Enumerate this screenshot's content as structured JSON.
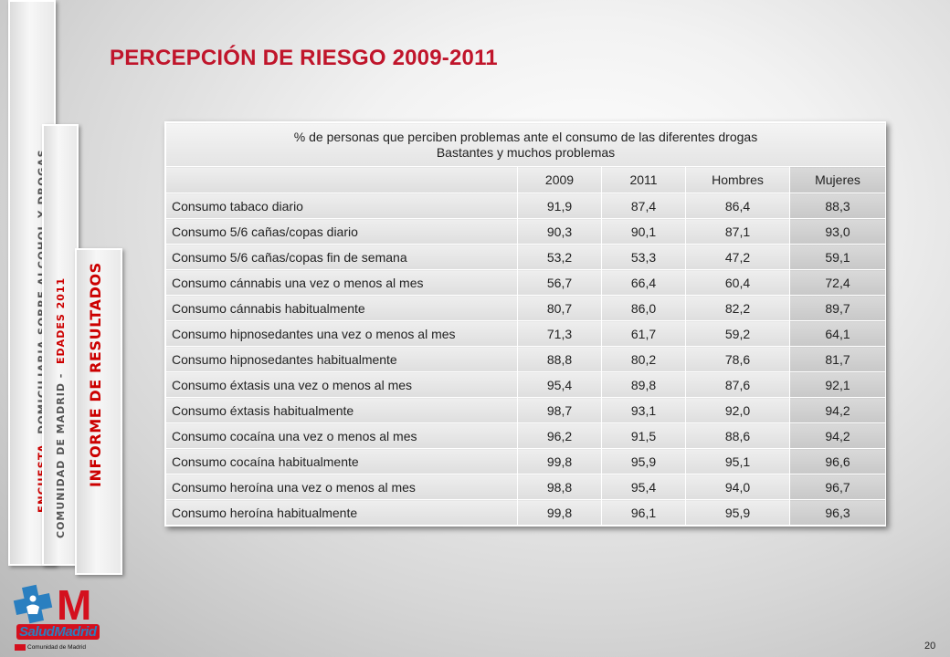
{
  "sidebar": {
    "tab1": {
      "part_a": "ENCUESTA",
      "part_b": "DOMICILIARIA  SOBRE  ALCOHOL  Y  DROGAS"
    },
    "tab2": {
      "part_a": "COMUNIDAD  DE  MADRID  -",
      "part_b": "EDADES  2011"
    },
    "tab3": {
      "text": "INFORME  DE  RESULTADOS"
    }
  },
  "title": "PERCEPCIÓN DE RIESGO 2009-2011",
  "table": {
    "caption_line1": "%  de personas que perciben problemas ante el consumo de las diferentes drogas",
    "caption_line2": "Bastantes y muchos problemas",
    "headers": [
      "",
      "2009",
      "2011",
      "Hombres",
      "Mujeres"
    ],
    "rows": [
      [
        "Consumo tabaco diario",
        "91,9",
        "87,4",
        "86,4",
        "88,3"
      ],
      [
        "Consumo 5/6 cañas/copas diario",
        "90,3",
        "90,1",
        "87,1",
        "93,0"
      ],
      [
        "Consumo 5/6 cañas/copas fin de semana",
        "53,2",
        "53,3",
        "47,2",
        "59,1"
      ],
      [
        "Consumo cánnabis una vez o menos al mes",
        "56,7",
        "66,4",
        "60,4",
        "72,4"
      ],
      [
        "Consumo cánnabis habitualmente",
        "80,7",
        "86,0",
        "82,2",
        "89,7"
      ],
      [
        "Consumo hipnosedantes una vez o menos al mes",
        "71,3",
        "61,7",
        "59,2",
        "64,1"
      ],
      [
        "Consumo hipnosedantes habitualmente",
        "88,8",
        "80,2",
        "78,6",
        "81,7"
      ],
      [
        "Consumo éxtasis una vez o menos al mes",
        "95,4",
        "89,8",
        "87,6",
        "92,1"
      ],
      [
        "Consumo éxtasis habitualmente",
        "98,7",
        "93,1",
        "92,0",
        "94,2"
      ],
      [
        "Consumo cocaína una vez o menos al mes",
        "96,2",
        "91,5",
        "88,6",
        "94,2"
      ],
      [
        "Consumo cocaína habitualmente",
        "99,8",
        "95,9",
        "95,1",
        "96,6"
      ],
      [
        "Consumo heroína una vez o menos al mes",
        "98,8",
        "95,4",
        "94,0",
        "96,7"
      ],
      [
        "Consumo heroína habitualmente",
        "99,8",
        "96,1",
        "95,9",
        "96,3"
      ]
    ]
  },
  "logo": {
    "m": "M",
    "salud": "SaludMadrid",
    "org": "Comunidad de Madrid"
  },
  "page_number": "20",
  "colors": {
    "accent_red": "#c0152b",
    "logo_red": "#d4101e",
    "logo_blue": "#2a7fc0"
  }
}
